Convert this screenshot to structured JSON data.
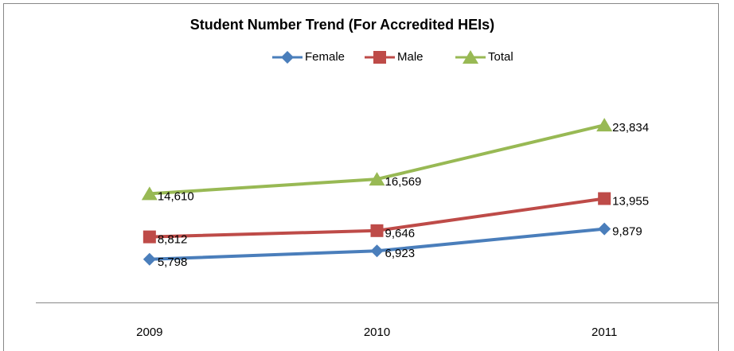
{
  "chart_data": {
    "type": "line",
    "title": "Student Number Trend (For Accredited HEIs)",
    "categories": [
      "2009",
      "2010",
      "2011"
    ],
    "series": [
      {
        "name": "Female",
        "color": "#4a7ebb",
        "marker": "diamond",
        "values": [
          5798,
          6923,
          9879
        ],
        "value_labels": [
          "5,798",
          "6,923",
          "9,879"
        ]
      },
      {
        "name": "Male",
        "color": "#be4b48",
        "marker": "square",
        "values": [
          8812,
          9646,
          13955
        ],
        "value_labels": [
          "8,812",
          "9,646",
          "13,955"
        ]
      },
      {
        "name": "Total",
        "color": "#98b954",
        "marker": "triangle",
        "values": [
          14610,
          16569,
          23834
        ],
        "value_labels": [
          "14,610",
          "16,569",
          "23,834"
        ]
      }
    ],
    "ylim": [
      0,
      40000
    ],
    "legend": "top"
  }
}
